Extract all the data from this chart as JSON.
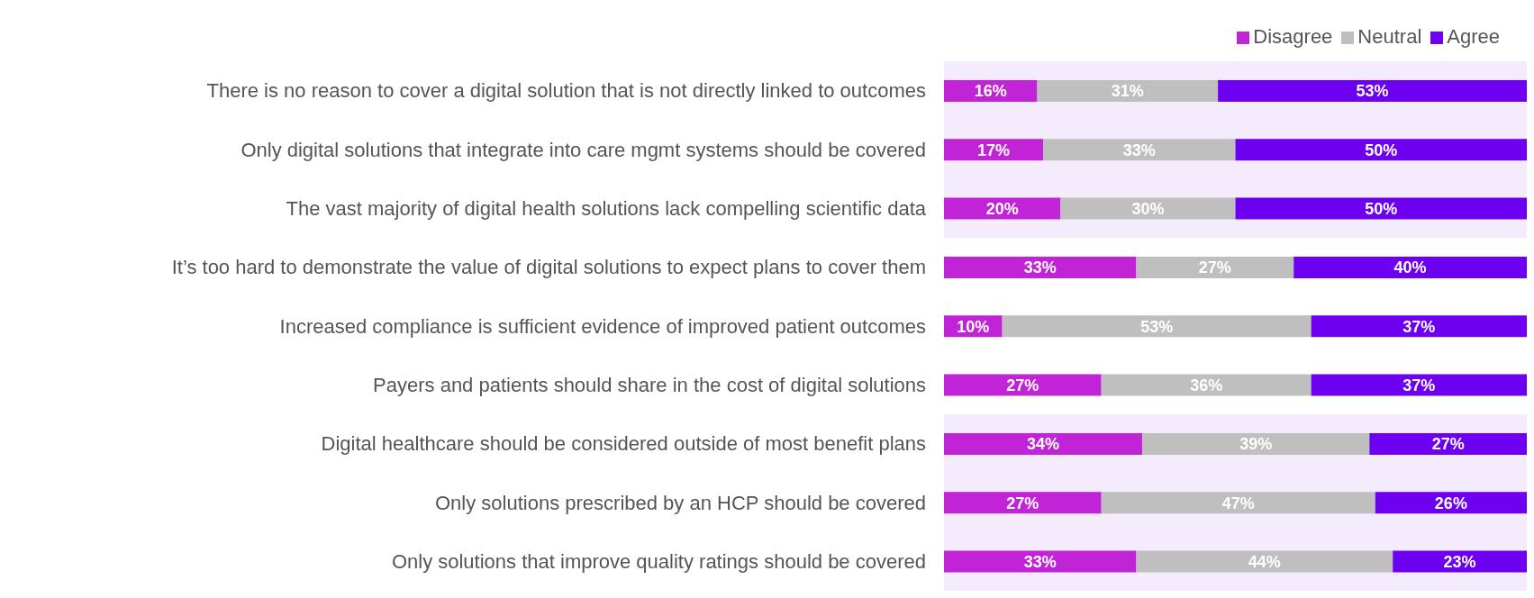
{
  "chart_data": {
    "type": "bar",
    "orientation": "horizontal",
    "stacked": true,
    "categories": [
      "There is no reason to cover a digital solution that is not directly linked to outcomes",
      "Only digital solutions that integrate into care mgmt systems should be covered",
      "The vast majority of digital health solutions lack compelling scientific data",
      "It’s too hard to demonstrate the value of digital solutions to expect plans to cover them",
      "Increased compliance is sufficient evidence of improved patient outcomes",
      "Payers and patients should share in the cost of digital solutions",
      "Digital healthcare should be considered outside of most benefit plans",
      "Only solutions prescribed by an HCP should be covered",
      "Only solutions that improve quality ratings should be covered"
    ],
    "series": [
      {
        "name": "Disagree",
        "color": "#c024d6",
        "values": [
          16,
          17,
          20,
          33,
          10,
          27,
          34,
          27,
          33
        ],
        "value_labels": [
          "16%",
          "17%",
          "20%",
          "33%",
          "10%",
          "27%",
          "34%",
          "27%",
          "33%"
        ]
      },
      {
        "name": "Neutral",
        "color": "#bfbfbf",
        "values": [
          31,
          33,
          30,
          27,
          53,
          36,
          39,
          47,
          44
        ],
        "value_labels": [
          "31%",
          "33%",
          "30%",
          "27%",
          "53%",
          "36%",
          "39%",
          "47%",
          "44%"
        ]
      },
      {
        "name": "Agree",
        "color": "#6e00f2",
        "values": [
          53,
          50,
          50,
          40,
          37,
          37,
          27,
          26,
          23
        ],
        "value_labels": [
          "53%",
          "50%",
          "50%",
          "40%",
          "37%",
          "37%",
          "27%",
          "26%",
          "23%"
        ]
      }
    ],
    "xlim": [
      0,
      100
    ],
    "tick_labels": "y",
    "grid": false,
    "legend": "top right",
    "bands": [
      {
        "axis": "y",
        "from": "There is no reason to cover a digital solution that is not directly linked to outcomes",
        "to": "The vast majority of digital health solutions lack compelling scientific data",
        "color": "#f4ecfd"
      },
      {
        "axis": "y",
        "from": "Digital healthcare should be considered outside of most benefit plans",
        "to": "Only solutions that improve quality ratings should be covered",
        "color": "#f4ecfd"
      }
    ]
  }
}
